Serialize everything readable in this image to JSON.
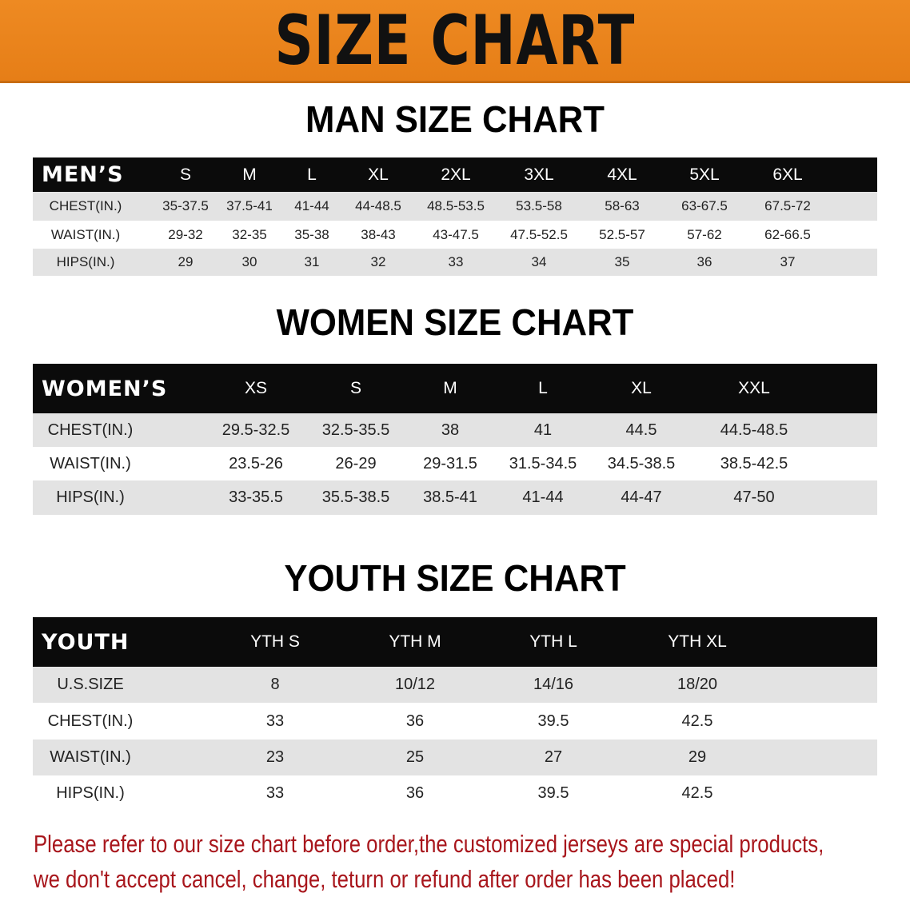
{
  "banner": {
    "title": "SIZE CHART",
    "color": "#e8821b"
  },
  "men": {
    "title": "MAN SIZE CHART",
    "header_label": "MEN’S",
    "sizes": [
      "S",
      "M",
      "L",
      "XL",
      "2XL",
      "3XL",
      "4XL",
      "5XL",
      "6XL"
    ],
    "rows": [
      {
        "label": "CHEST(IN.)",
        "values": [
          "35-37.5",
          "37.5-41",
          "41-44",
          "44-48.5",
          "48.5-53.5",
          "53.5-58",
          "58-63",
          "63-67.5",
          "67.5-72"
        ]
      },
      {
        "label": "WAIST(IN.)",
        "values": [
          "29-32",
          "32-35",
          "35-38",
          "38-43",
          "43-47.5",
          "47.5-52.5",
          "52.5-57",
          "57-62",
          "62-66.5"
        ]
      },
      {
        "label": "HIPS(IN.)",
        "values": [
          "29",
          "30",
          "31",
          "32",
          "33",
          "34",
          "35",
          "36",
          "37"
        ]
      }
    ]
  },
  "women": {
    "title": "WOMEN SIZE CHART",
    "header_label": "WOMEN’S",
    "sizes": [
      "XS",
      "S",
      "M",
      "L",
      "XL",
      "XXL"
    ],
    "rows": [
      {
        "label": "CHEST(IN.)",
        "values": [
          "29.5-32.5",
          "32.5-35.5",
          "38",
          "41",
          "44.5",
          "44.5-48.5"
        ]
      },
      {
        "label": "WAIST(IN.)",
        "values": [
          "23.5-26",
          "26-29",
          "29-31.5",
          "31.5-34.5",
          "34.5-38.5",
          "38.5-42.5"
        ]
      },
      {
        "label": "HIPS(IN.)",
        "values": [
          "33-35.5",
          "35.5-38.5",
          "38.5-41",
          "41-44",
          "44-47",
          "47-50"
        ]
      }
    ]
  },
  "youth": {
    "title": "YOUTH SIZE CHART",
    "header_label": "YOUTH",
    "sizes": [
      "YTH S",
      "YTH M",
      "YTH L",
      "YTH XL"
    ],
    "rows": [
      {
        "label": "U.S.SIZE",
        "values": [
          "8",
          "10/12",
          "14/16",
          "18/20"
        ]
      },
      {
        "label": "CHEST(IN.)",
        "values": [
          "33",
          "36",
          "39.5",
          "42.5"
        ]
      },
      {
        "label": "WAIST(IN.)",
        "values": [
          "23",
          "25",
          "27",
          "29"
        ]
      },
      {
        "label": "HIPS(IN.)",
        "values": [
          "33",
          "36",
          "39.5",
          "42.5"
        ]
      }
    ]
  },
  "notice": {
    "line1": "Please refer to our size chart before order,the customized jerseys are special products,",
    "line2": "we don't accept cancel, change, teturn or refund after order has been placed!",
    "color": "#a8161c"
  }
}
